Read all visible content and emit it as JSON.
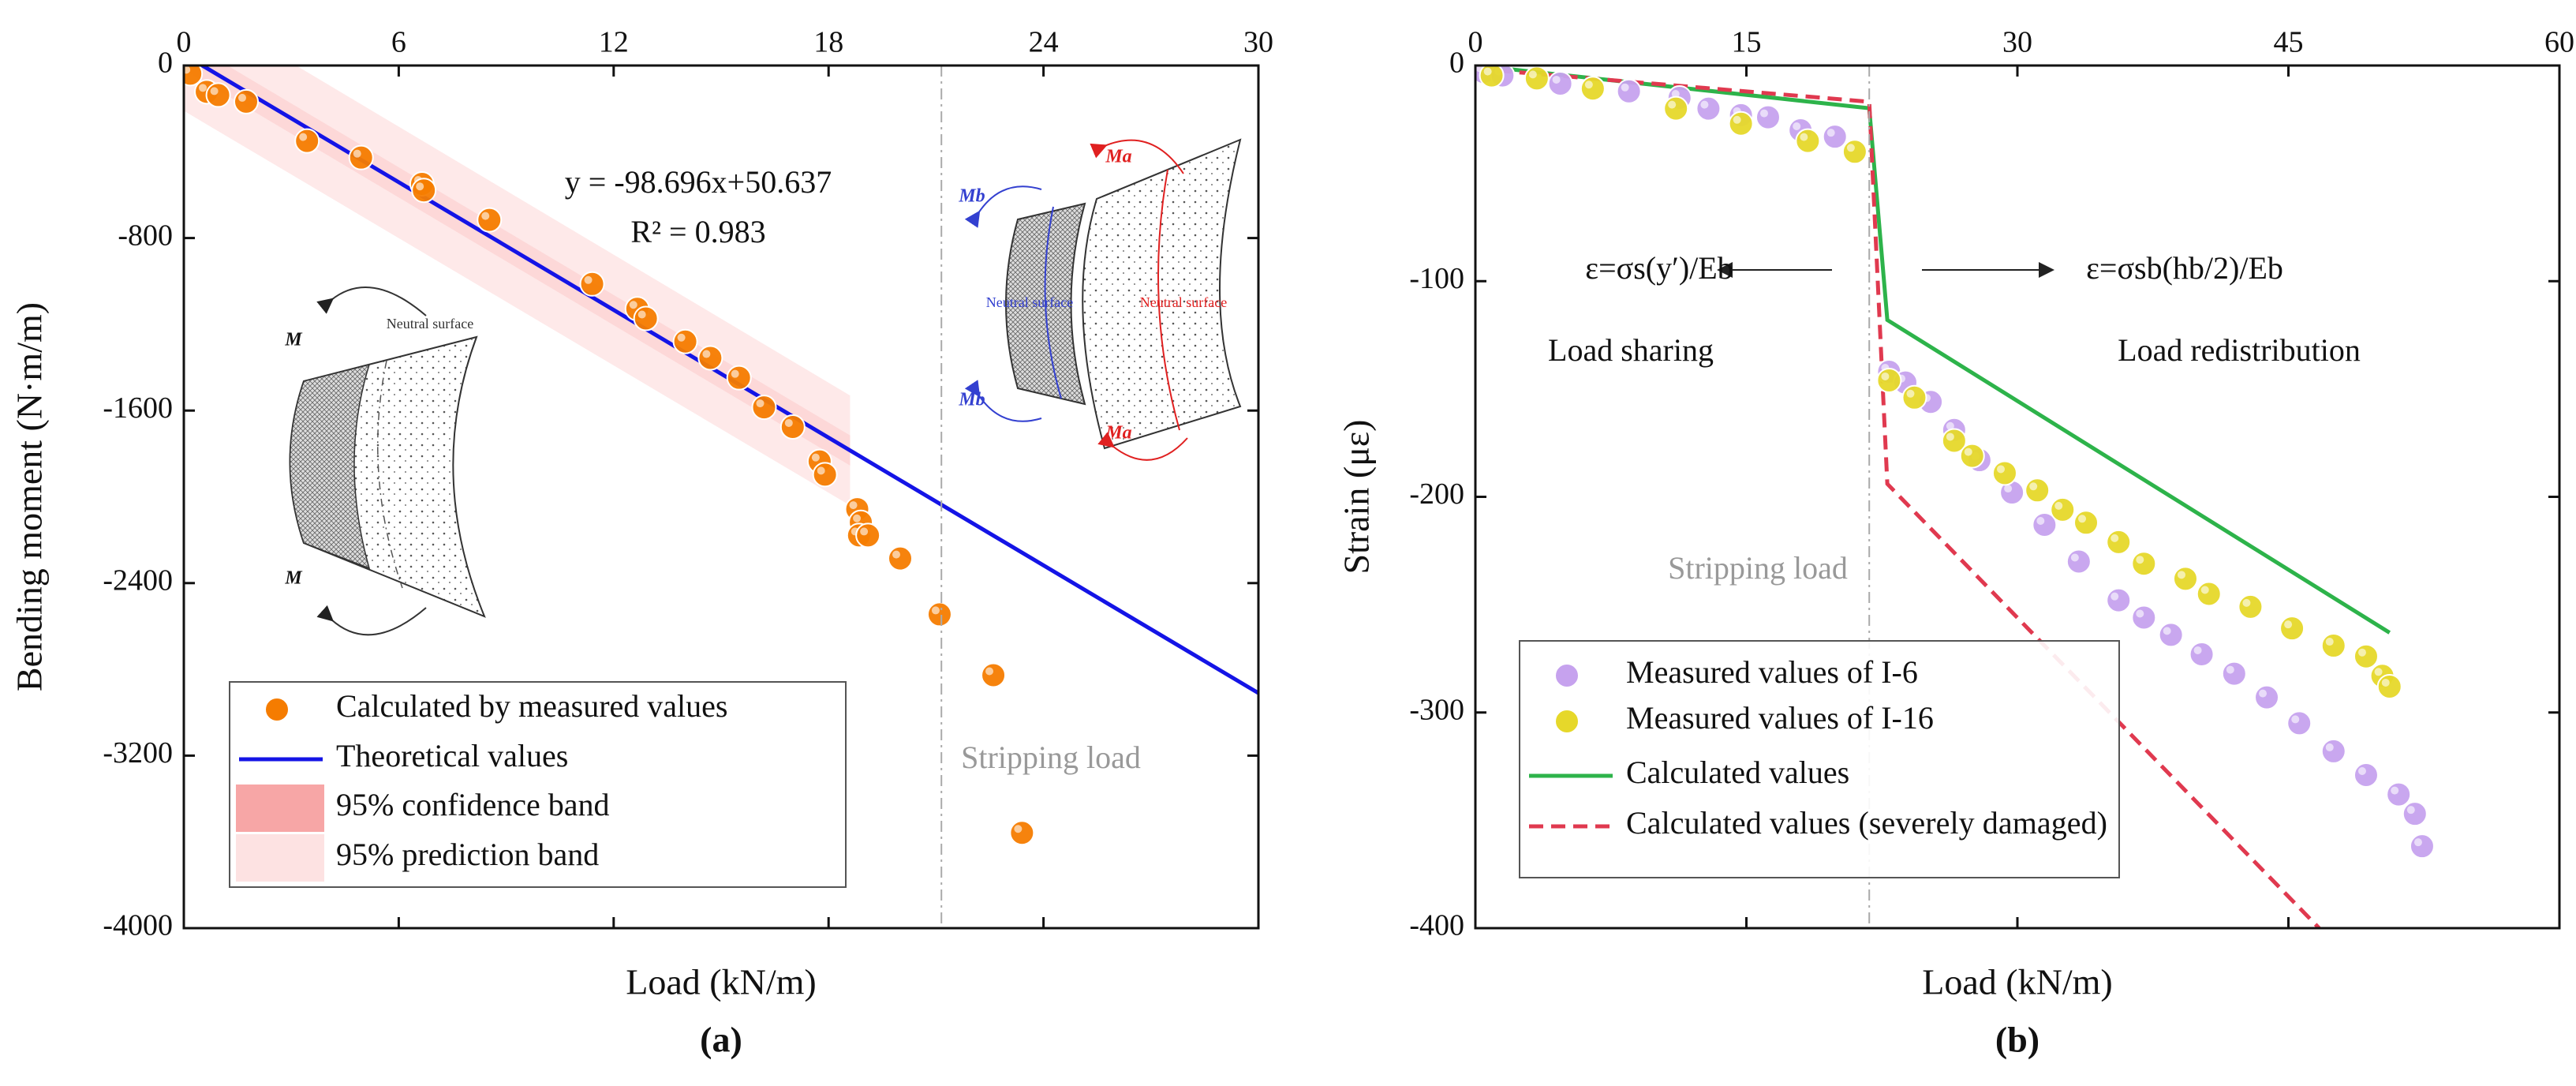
{
  "chart_data": [
    {
      "type": "scatter",
      "panel_label": "(a)",
      "xlabel": "Load (kN/m)",
      "ylabel": "Bending moment (N·m/m)",
      "xlim": [
        0,
        30
      ],
      "xticks": [
        0,
        6,
        12,
        18,
        24,
        30
      ],
      "ylim": [
        -4000,
        0
      ],
      "yticks": [
        -4000,
        -3200,
        -2400,
        -1600,
        -800,
        0
      ],
      "series": [
        {
          "name": "Calculated by measured values",
          "type": "scatter",
          "color": "#f57c00",
          "x": [
            0.18,
            0.64,
            0.96,
            1.74,
            3.44,
            4.95,
            6.65,
            6.7,
            8.53,
            11.4,
            12.66,
            12.9,
            14.0,
            14.7,
            15.5,
            16.2,
            17.0,
            17.75,
            17.9,
            18.8,
            18.9,
            18.85,
            19.1,
            20.0,
            21.1,
            22.6,
            23.4
          ],
          "values": [
            -38,
            -122,
            -137,
            -168,
            -350,
            -427,
            -549,
            -579,
            -716,
            -1013,
            -1128,
            -1173,
            -1280,
            -1356,
            -1448,
            -1585,
            -1676,
            -1836,
            -1897,
            -2057,
            -2118,
            -2179,
            -2179,
            -2286,
            -2545,
            -2827,
            -3558
          ]
        },
        {
          "name": "Theoretical values",
          "type": "line",
          "color": "#1414e6",
          "x": [
            0,
            30
          ],
          "values": [
            51,
            -2910
          ]
        },
        {
          "name": "95% confidence band",
          "type": "band",
          "color": "#f7a6a6",
          "x": [
            0,
            18.6
          ],
          "lower": [
            -20,
            -1855
          ],
          "upper": [
            120,
            -1715
          ]
        },
        {
          "name": "95% prediction band",
          "type": "band",
          "color": "#fde2e2",
          "x": [
            0,
            18.6
          ],
          "lower": [
            -210,
            -2040
          ],
          "upper": [
            310,
            -1530
          ]
        }
      ],
      "annotations": [
        {
          "text": "y = -98.696x+50.637"
        },
        {
          "text": "R² = 0.983"
        }
      ],
      "stripping_load": {
        "x": 21.15,
        "label": "Stripping load"
      },
      "inset_labels": [
        "Neutral surface",
        "M",
        "M",
        "Mb",
        "Mb",
        "Ma",
        "Ma",
        "Neutral surface",
        "Neutral surface"
      ]
    },
    {
      "type": "scatter",
      "panel_label": "(b)",
      "xlabel": "Load (kN/m)",
      "ylabel": "Strain (με)",
      "xlim": [
        0,
        60
      ],
      "xticks": [
        0,
        15,
        30,
        45,
        60
      ],
      "ylim": [
        -400,
        0
      ],
      "yticks": [
        -400,
        -300,
        -200,
        -100,
        0
      ],
      "series": [
        {
          "name": "Measured values of I-6",
          "type": "scatter",
          "color": "#c6a2ee",
          "x": [
            0.45,
            1.5,
            4.7,
            8.5,
            11.3,
            12.9,
            14.7,
            16.2,
            18,
            19.9,
            22.9,
            23.8,
            25.2,
            26.5,
            27.9,
            29.7,
            31.5,
            33.4,
            35.6,
            37,
            38.5,
            40.2,
            42,
            43.8,
            45.6,
            47.5,
            49.3,
            51.1,
            52,
            52.4
          ],
          "values": [
            -3,
            -4.6,
            -8.4,
            -12,
            -15,
            -20,
            -23,
            -24,
            -30,
            -33,
            -142,
            -147,
            -156,
            -169,
            -183,
            -198,
            -213,
            -230,
            -248,
            -256,
            -264,
            -273,
            -282,
            -293,
            -305,
            -318,
            -329,
            -338,
            -347,
            -362
          ]
        },
        {
          "name": "Measured values of I-16",
          "type": "scatter",
          "color": "#e6d82a",
          "x": [
            0.9,
            3.4,
            6.5,
            11.1,
            14.7,
            18.4,
            21,
            22.9,
            24.3,
            26.5,
            27.5,
            29.3,
            31.1,
            32.5,
            33.8,
            35.6,
            37,
            39.3,
            40.6,
            42.9,
            45.2,
            47.5,
            49.3,
            50.2,
            50.6
          ],
          "values": [
            -4.6,
            -6,
            -10.7,
            -20,
            -27,
            -35,
            -40,
            -146,
            -154,
            -174,
            -181,
            -189,
            -197,
            -206,
            -212,
            -221,
            -231,
            -238,
            -245,
            -251,
            -261,
            -269,
            -274,
            -283,
            -288
          ]
        },
        {
          "name": "Calculated values",
          "type": "line",
          "color": "#2db34a",
          "x": [
            0,
            21.8,
            22.8,
            50.6
          ],
          "values": [
            0,
            -19.8,
            -118,
            -263
          ]
        },
        {
          "name": "Calculated values (severely damaged)",
          "type": "line",
          "dashed": true,
          "color": "#e0394f",
          "x": [
            0,
            21.8,
            22.8,
            46.7
          ],
          "values": [
            -1.5,
            -16.8,
            -194,
            -400
          ]
        }
      ],
      "annotations": [
        {
          "text": "ε=σs(y′)/Eb"
        },
        {
          "text": "ε=σsb(hb/2)/Eb"
        },
        {
          "text": "Load sharing"
        },
        {
          "text": "Load redistribution"
        }
      ],
      "stripping_load": {
        "x": 21.8,
        "label": "Stripping load"
      }
    }
  ]
}
